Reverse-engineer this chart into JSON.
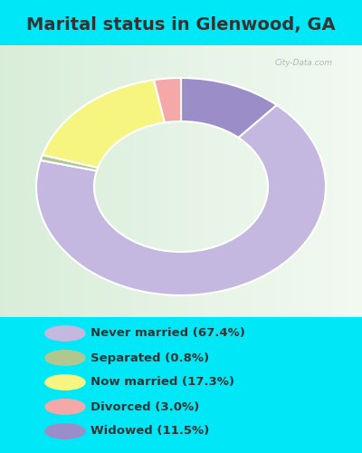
{
  "title": "Marital status in Glenwood, GA",
  "wedge_values": [
    67.4,
    11.5,
    0.8,
    17.3,
    3.0
  ],
  "wedge_colors": [
    "#c4b8e0",
    "#9b8ec8",
    "#b0c890",
    "#f5f580",
    "#f5a8a8"
  ],
  "legend_labels": [
    "Never married (67.4%)",
    "Separated (0.8%)",
    "Now married (17.3%)",
    "Divorced (3.0%)",
    "Widowed (11.5%)"
  ],
  "legend_colors": [
    "#c4b8e0",
    "#b0c890",
    "#f5f580",
    "#f5a8a8",
    "#9b8ec8"
  ],
  "bg_cyan": "#00e8f8",
  "bg_chart_top": "#d8f0d8",
  "bg_chart_bottom": "#c8e8d0",
  "title_fontsize": 14,
  "watermark": "City-Data.com",
  "text_color": "#333333"
}
